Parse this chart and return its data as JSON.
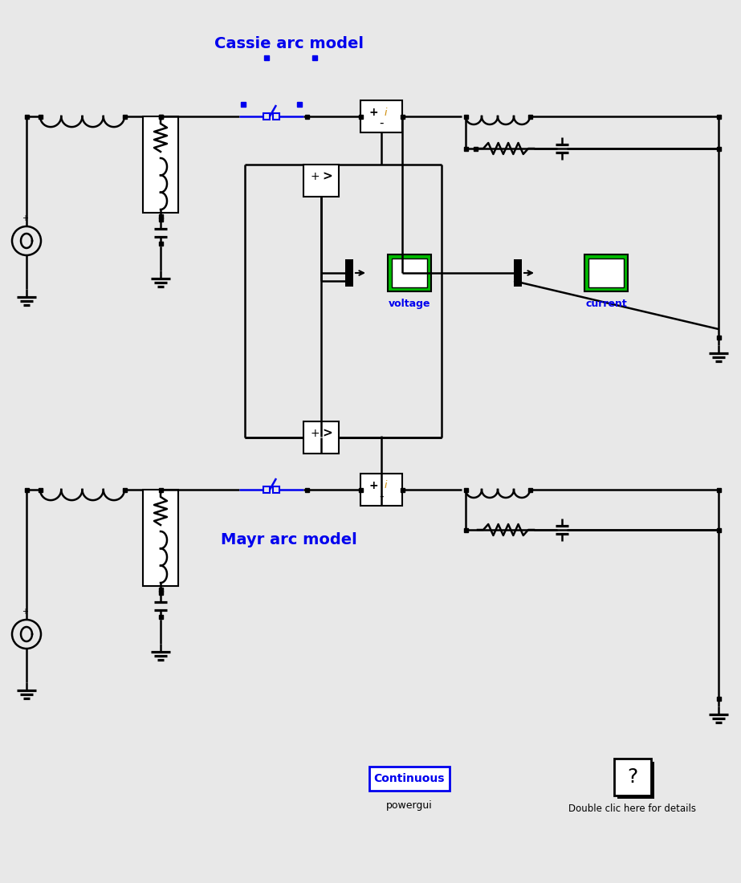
{
  "bg_color": "#e8e8e8",
  "cassie_label": "Cassie arc model",
  "mayr_label": "Mayr arc model",
  "voltage_label": "voltage",
  "current_label": "current",
  "continuous_label": "Continuous",
  "powergui_label": "powergui",
  "help_label": "Double clic here for details",
  "blue": "#0000ee",
  "black": "#000000",
  "white": "#ffffff",
  "orange": "#cc8800",
  "scope_green": "#00bb00",
  "scope_inner": "#ffffff"
}
